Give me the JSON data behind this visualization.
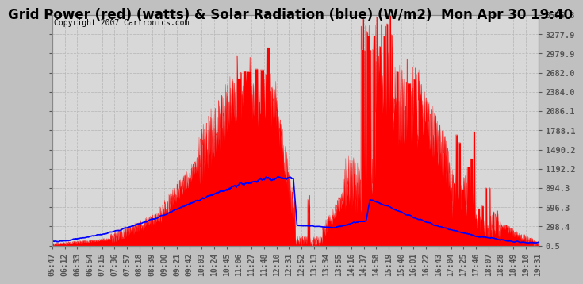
{
  "title": "Grid Power (red) (watts) & Solar Radiation (blue) (W/m2)  Mon Apr 30 19:40",
  "copyright": "Copyright 2007 Cartronics.com",
  "bg_color": "#c0c0c0",
  "plot_bg": "#d8d8d8",
  "grid_color": "#aaaaaa",
  "red_color": "#ff0000",
  "blue_color": "#0000ff",
  "text_color": "#000000",
  "title_color": "#000000",
  "font_size_title": 12,
  "font_size_ticks": 7,
  "font_size_copy": 7,
  "y_min": 0.5,
  "y_max": 3575.8,
  "y_ticks": [
    0.5,
    298.4,
    596.3,
    894.3,
    1192.2,
    1490.2,
    1788.1,
    2086.1,
    2384.0,
    2682.0,
    2979.9,
    3277.9,
    3575.8
  ],
  "x_labels": [
    "05:47",
    "06:12",
    "06:33",
    "06:54",
    "07:15",
    "07:36",
    "07:57",
    "08:18",
    "08:39",
    "09:00",
    "09:21",
    "09:42",
    "10:03",
    "10:24",
    "10:45",
    "11:06",
    "11:27",
    "11:48",
    "12:10",
    "12:31",
    "12:52",
    "13:13",
    "13:34",
    "13:55",
    "14:16",
    "14:37",
    "14:58",
    "15:19",
    "15:40",
    "16:01",
    "16:22",
    "16:43",
    "17:04",
    "17:25",
    "17:46",
    "18:07",
    "18:28",
    "18:49",
    "19:10",
    "19:31"
  ]
}
